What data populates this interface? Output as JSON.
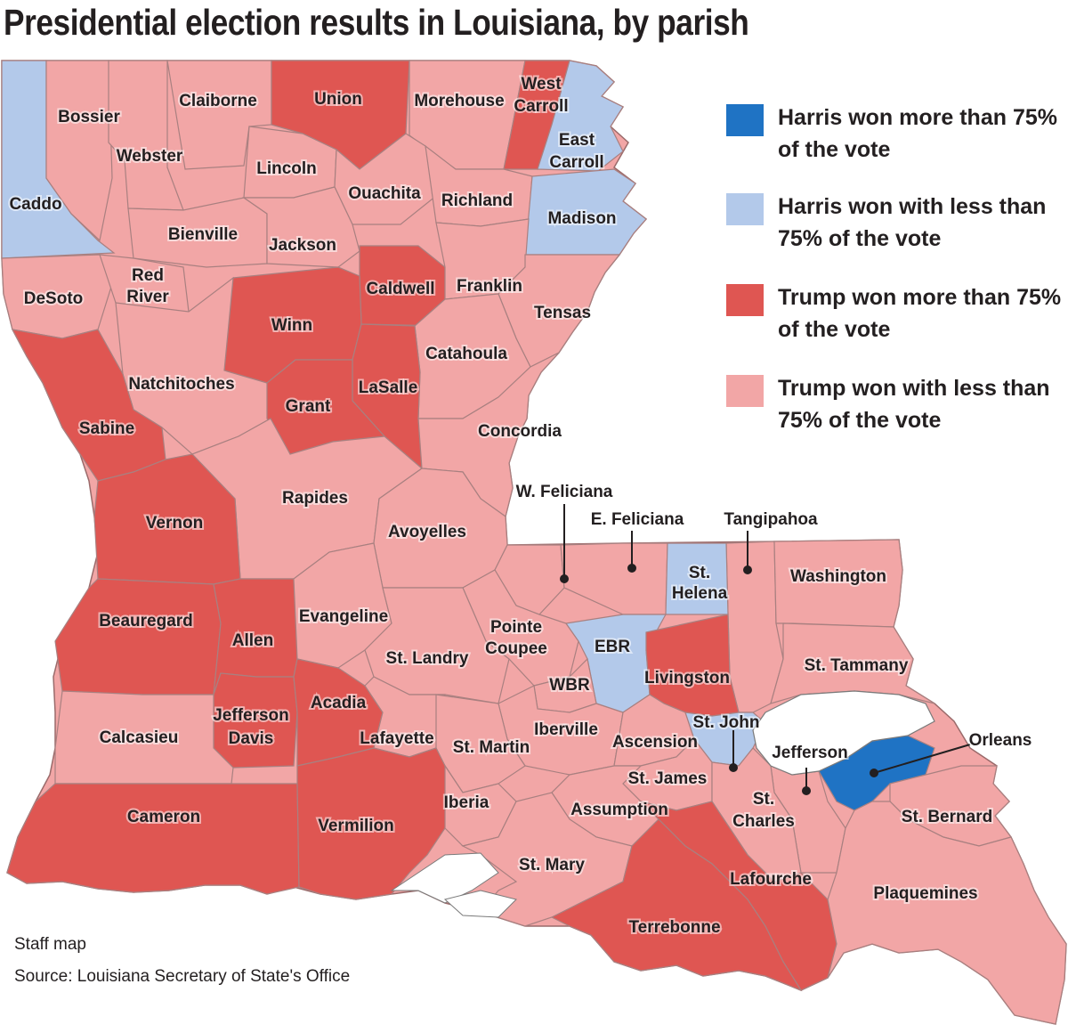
{
  "title": "Presidential election results in Louisiana, by parish",
  "colors": {
    "harris_over_75": "#1f73c4",
    "harris_under_75": "#b3c9ea",
    "trump_over_75": "#df5652",
    "trump_under_75": "#f2a6a6"
  },
  "legend": [
    {
      "category": "harris_over_75",
      "label": "Harris won more than 75% of the vote"
    },
    {
      "category": "harris_under_75",
      "label": "Harris won with less than 75% of the vote"
    },
    {
      "category": "trump_over_75",
      "label": "Trump won more than 75% of the vote"
    },
    {
      "category": "trump_under_75",
      "label": "Trump won with less than 75% of the vote"
    }
  ],
  "parishes": [
    {
      "name": "Caddo",
      "category": "harris_under_75"
    },
    {
      "name": "Bossier",
      "category": "trump_under_75"
    },
    {
      "name": "Webster",
      "category": "trump_under_75"
    },
    {
      "name": "Claiborne",
      "category": "trump_under_75"
    },
    {
      "name": "Union",
      "category": "trump_over_75"
    },
    {
      "name": "Morehouse",
      "category": "trump_under_75"
    },
    {
      "name": "West Carroll",
      "category": "trump_over_75"
    },
    {
      "name": "East Carroll",
      "category": "harris_under_75"
    },
    {
      "name": "Lincoln",
      "category": "trump_under_75"
    },
    {
      "name": "Ouachita",
      "category": "trump_under_75"
    },
    {
      "name": "Richland",
      "category": "trump_under_75"
    },
    {
      "name": "Madison",
      "category": "harris_under_75"
    },
    {
      "name": "Bienville",
      "category": "trump_under_75"
    },
    {
      "name": "Jackson",
      "category": "trump_under_75"
    },
    {
      "name": "DeSoto",
      "category": "trump_under_75"
    },
    {
      "name": "Red River",
      "category": "trump_under_75"
    },
    {
      "name": "Caldwell",
      "category": "trump_over_75"
    },
    {
      "name": "Franklin",
      "category": "trump_under_75"
    },
    {
      "name": "Tensas",
      "category": "trump_under_75"
    },
    {
      "name": "Winn",
      "category": "trump_over_75"
    },
    {
      "name": "Natchitoches",
      "category": "trump_under_75"
    },
    {
      "name": "Catahoula",
      "category": "trump_under_75"
    },
    {
      "name": "LaSalle",
      "category": "trump_over_75"
    },
    {
      "name": "Grant",
      "category": "trump_over_75"
    },
    {
      "name": "Sabine",
      "category": "trump_over_75"
    },
    {
      "name": "Concordia",
      "category": "trump_under_75"
    },
    {
      "name": "Rapides",
      "category": "trump_under_75"
    },
    {
      "name": "Vernon",
      "category": "trump_over_75"
    },
    {
      "name": "Avoyelles",
      "category": "trump_under_75"
    },
    {
      "name": "W. Feliciana",
      "category": "trump_under_75"
    },
    {
      "name": "E. Feliciana",
      "category": "trump_under_75"
    },
    {
      "name": "Tangipahoa",
      "category": "trump_under_75"
    },
    {
      "name": "St. Helena",
      "category": "harris_under_75"
    },
    {
      "name": "Washington",
      "category": "trump_under_75"
    },
    {
      "name": "Beauregard",
      "category": "trump_over_75"
    },
    {
      "name": "Allen",
      "category": "trump_over_75"
    },
    {
      "name": "Evangeline",
      "category": "trump_under_75"
    },
    {
      "name": "Pointe Coupee",
      "category": "trump_under_75"
    },
    {
      "name": "EBR",
      "category": "harris_under_75"
    },
    {
      "name": "St. Landry",
      "category": "trump_under_75"
    },
    {
      "name": "Livingston",
      "category": "trump_over_75"
    },
    {
      "name": "St. Tammany",
      "category": "trump_under_75"
    },
    {
      "name": "WBR",
      "category": "trump_under_75"
    },
    {
      "name": "Jefferson Davis",
      "category": "trump_over_75"
    },
    {
      "name": "Acadia",
      "category": "trump_over_75"
    },
    {
      "name": "Calcasieu",
      "category": "trump_under_75"
    },
    {
      "name": "Lafayette",
      "category": "trump_under_75"
    },
    {
      "name": "Iberville",
      "category": "trump_under_75"
    },
    {
      "name": "St. Martin",
      "category": "trump_under_75"
    },
    {
      "name": "Ascension",
      "category": "trump_under_75"
    },
    {
      "name": "St. John",
      "category": "harris_under_75"
    },
    {
      "name": "Jefferson",
      "category": "trump_under_75"
    },
    {
      "name": "Orleans",
      "category": "harris_over_75"
    },
    {
      "name": "St. James",
      "category": "trump_under_75"
    },
    {
      "name": "Cameron",
      "category": "trump_over_75"
    },
    {
      "name": "Vermilion",
      "category": "trump_over_75"
    },
    {
      "name": "Iberia",
      "category": "trump_under_75"
    },
    {
      "name": "Assumption",
      "category": "trump_under_75"
    },
    {
      "name": "St. Charles",
      "category": "trump_under_75"
    },
    {
      "name": "St. Bernard",
      "category": "trump_under_75"
    },
    {
      "name": "St. Mary",
      "category": "trump_under_75"
    },
    {
      "name": "Lafourche",
      "category": "trump_over_75"
    },
    {
      "name": "Plaquemines",
      "category": "trump_under_75"
    },
    {
      "name": "Terrebonne",
      "category": "trump_over_75"
    }
  ],
  "credits": {
    "staff": "Staff map",
    "source": "Source: Louisiana Secretary of State's Office"
  }
}
